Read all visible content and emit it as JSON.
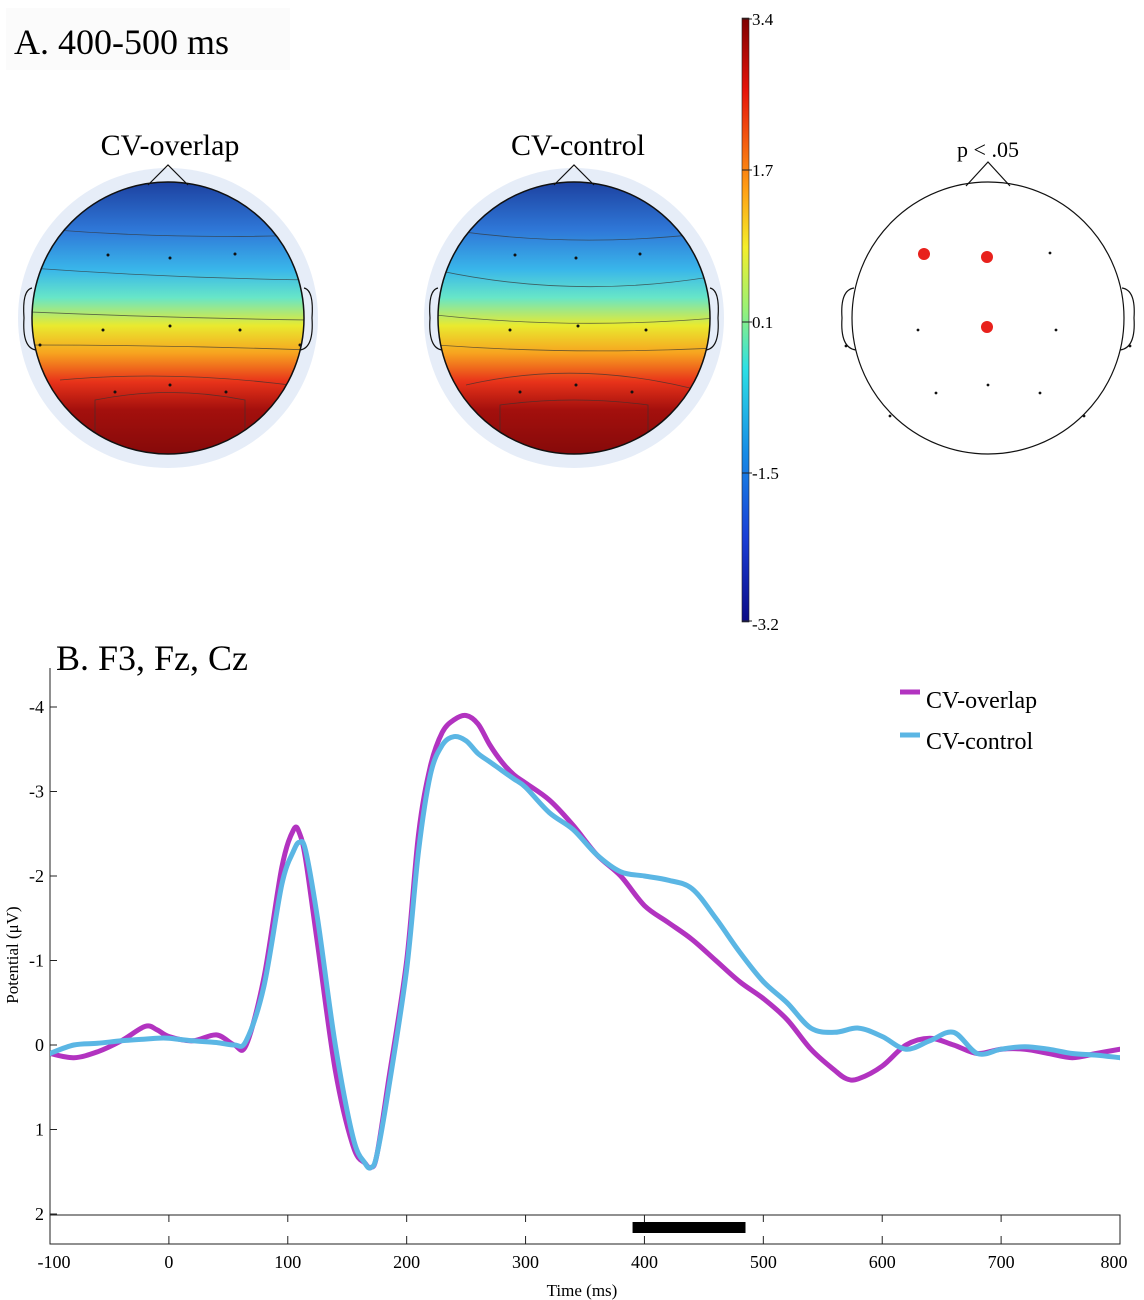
{
  "panel_a": {
    "title": "A. 400-500 ms",
    "maps": [
      {
        "title": "CV-overlap"
      },
      {
        "title": "CV-control"
      }
    ],
    "colorbar": {
      "ticks": [
        "3.4",
        "1.7",
        "0.1",
        "-1.5",
        "-3.2"
      ],
      "min": -3.2,
      "max": 3.4
    },
    "significance_map": {
      "title": "p < .05",
      "significant_count": 3,
      "color": "#e8211c"
    }
  },
  "chart_data": {
    "type": "line",
    "title": "B. F3, Fz, Cz",
    "xlabel": "Time (ms)",
    "ylabel": "Potential (μV)",
    "xlim": [
      -100,
      800
    ],
    "ylim": [
      2,
      -4.4
    ],
    "y_inverted": true,
    "xticks": [
      "-100",
      "0",
      "100",
      "200",
      "300",
      "400",
      "500",
      "600",
      "700",
      "800"
    ],
    "yticks": [
      "-4",
      "-3",
      "-2",
      "-1",
      "0",
      "1",
      "2"
    ],
    "legend_position": "top-right",
    "significance_bar": {
      "start": 390,
      "end": 485
    },
    "series": [
      {
        "name": "CV-overlap",
        "color": "#b233c0",
        "x": [
          -100,
          -80,
          -60,
          -40,
          -20,
          -10,
          0,
          20,
          40,
          55,
          65,
          80,
          95,
          105,
          110,
          115,
          125,
          140,
          155,
          165,
          170,
          175,
          185,
          200,
          210,
          220,
          230,
          240,
          250,
          260,
          270,
          280,
          290,
          300,
          320,
          340,
          360,
          380,
          400,
          420,
          440,
          460,
          480,
          500,
          520,
          540,
          560,
          570,
          580,
          600,
          620,
          640,
          660,
          680,
          700,
          720,
          740,
          760,
          780,
          800
        ],
        "y": [
          0.1,
          0.15,
          0.08,
          -0.05,
          -0.22,
          -0.18,
          -0.1,
          -0.05,
          -0.12,
          0.0,
          0.0,
          -0.8,
          -2.1,
          -2.55,
          -2.5,
          -2.2,
          -1.2,
          0.3,
          1.2,
          1.4,
          1.45,
          1.3,
          0.4,
          -1.0,
          -2.5,
          -3.3,
          -3.7,
          -3.85,
          -3.9,
          -3.8,
          -3.55,
          -3.35,
          -3.2,
          -3.1,
          -2.9,
          -2.6,
          -2.25,
          -2.0,
          -1.65,
          -1.45,
          -1.25,
          -1.0,
          -0.75,
          -0.55,
          -0.3,
          0.05,
          0.3,
          0.4,
          0.4,
          0.25,
          0.0,
          -0.08,
          0.0,
          0.1,
          0.05,
          0.05,
          0.1,
          0.15,
          0.1,
          0.05
        ]
      },
      {
        "name": "CV-control",
        "color": "#5bb6e4",
        "x": [
          -100,
          -80,
          -60,
          -40,
          -20,
          -10,
          0,
          20,
          40,
          55,
          65,
          80,
          95,
          105,
          110,
          115,
          125,
          140,
          155,
          165,
          170,
          175,
          185,
          200,
          210,
          220,
          230,
          240,
          250,
          260,
          270,
          280,
          290,
          300,
          320,
          340,
          360,
          380,
          400,
          420,
          440,
          460,
          480,
          500,
          520,
          540,
          560,
          580,
          600,
          620,
          640,
          660,
          680,
          700,
          720,
          740,
          760,
          780,
          800
        ],
        "y": [
          0.1,
          0.0,
          -0.02,
          -0.05,
          -0.07,
          -0.08,
          -0.08,
          -0.05,
          -0.03,
          0.0,
          -0.05,
          -0.7,
          -1.9,
          -2.3,
          -2.4,
          -2.3,
          -1.5,
          0.0,
          1.1,
          1.4,
          1.45,
          1.3,
          0.5,
          -0.9,
          -2.3,
          -3.2,
          -3.55,
          -3.65,
          -3.6,
          -3.45,
          -3.35,
          -3.25,
          -3.15,
          -3.05,
          -2.75,
          -2.55,
          -2.25,
          -2.05,
          -2.0,
          -1.95,
          -1.85,
          -1.5,
          -1.1,
          -0.75,
          -0.5,
          -0.2,
          -0.15,
          -0.2,
          -0.1,
          0.05,
          -0.05,
          -0.15,
          0.1,
          0.05,
          0.02,
          0.05,
          0.1,
          0.12,
          0.15
        ]
      }
    ]
  }
}
